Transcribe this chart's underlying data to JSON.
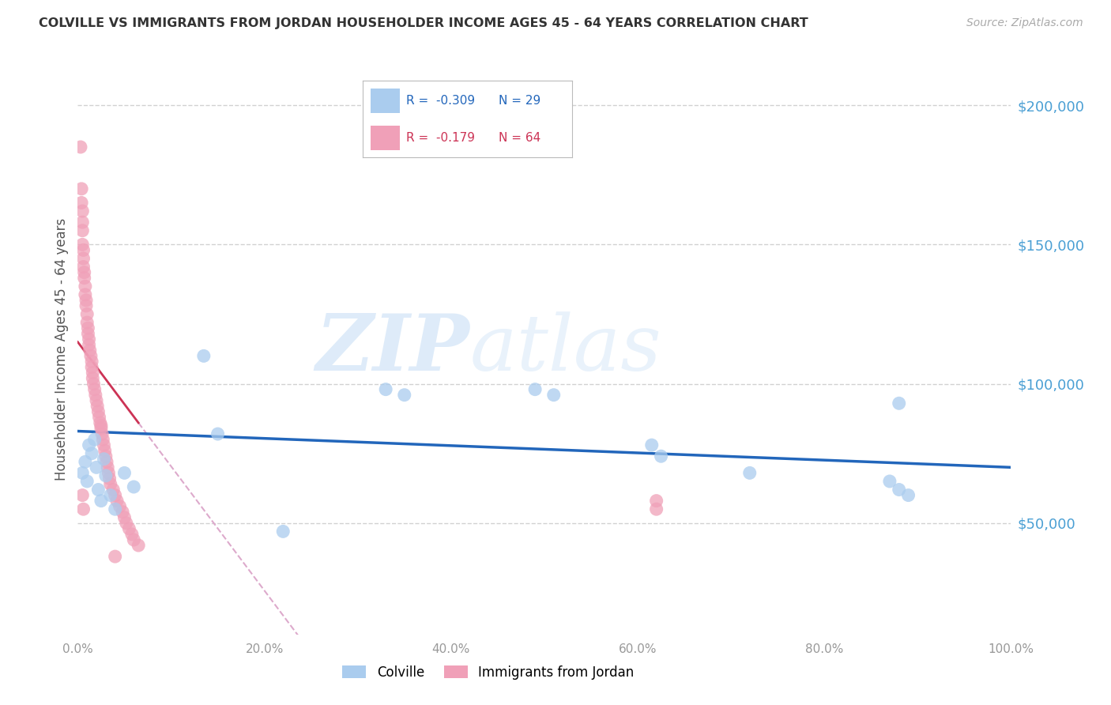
{
  "title": "COLVILLE VS IMMIGRANTS FROM JORDAN HOUSEHOLDER INCOME AGES 45 - 64 YEARS CORRELATION CHART",
  "source": "Source: ZipAtlas.com",
  "ylabel": "Householder Income Ages 45 - 64 years",
  "ytick_labels": [
    "$50,000",
    "$100,000",
    "$150,000",
    "$200,000"
  ],
  "ytick_values": [
    50000,
    100000,
    150000,
    200000
  ],
  "ymin": 10000,
  "ymax": 215000,
  "xmin": 0.0,
  "xmax": 1.0,
  "legend_blue_r": "-0.309",
  "legend_blue_n": "29",
  "legend_pink_r": "-0.179",
  "legend_pink_n": "64",
  "colville_color": "#aaccee",
  "jordan_color": "#f0a0b8",
  "trendline_blue_color": "#2266bb",
  "trendline_pink_solid_color": "#cc3355",
  "trendline_pink_dashed_color": "#ddaacc",
  "watermark": "ZIPatlas",
  "colville_x": [
    0.005,
    0.008,
    0.01,
    0.012,
    0.015,
    0.018,
    0.02,
    0.022,
    0.025,
    0.028,
    0.03,
    0.035,
    0.04,
    0.05,
    0.06,
    0.135,
    0.15,
    0.33,
    0.35,
    0.49,
    0.51,
    0.615,
    0.625,
    0.72,
    0.87,
    0.88,
    0.89,
    0.88,
    0.22
  ],
  "colville_y": [
    68000,
    72000,
    65000,
    78000,
    75000,
    80000,
    70000,
    62000,
    58000,
    73000,
    67000,
    60000,
    55000,
    68000,
    63000,
    110000,
    82000,
    98000,
    96000,
    98000,
    96000,
    78000,
    74000,
    68000,
    65000,
    62000,
    60000,
    93000,
    47000
  ],
  "jordan_x": [
    0.003,
    0.004,
    0.004,
    0.005,
    0.005,
    0.005,
    0.005,
    0.006,
    0.006,
    0.006,
    0.007,
    0.007,
    0.008,
    0.008,
    0.009,
    0.009,
    0.01,
    0.01,
    0.011,
    0.011,
    0.012,
    0.012,
    0.013,
    0.014,
    0.015,
    0.015,
    0.016,
    0.016,
    0.017,
    0.018,
    0.019,
    0.02,
    0.021,
    0.022,
    0.023,
    0.024,
    0.025,
    0.026,
    0.027,
    0.028,
    0.029,
    0.03,
    0.031,
    0.032,
    0.033,
    0.034,
    0.035,
    0.038,
    0.04,
    0.042,
    0.045,
    0.048,
    0.05,
    0.052,
    0.055,
    0.058,
    0.06,
    0.065,
    0.005,
    0.006,
    0.025,
    0.04,
    0.62,
    0.62
  ],
  "jordan_y": [
    185000,
    170000,
    165000,
    162000,
    158000,
    155000,
    150000,
    148000,
    145000,
    142000,
    140000,
    138000,
    135000,
    132000,
    130000,
    128000,
    125000,
    122000,
    120000,
    118000,
    116000,
    114000,
    112000,
    110000,
    108000,
    106000,
    104000,
    102000,
    100000,
    98000,
    96000,
    94000,
    92000,
    90000,
    88000,
    86000,
    84000,
    82000,
    80000,
    78000,
    76000,
    74000,
    72000,
    70000,
    68000,
    66000,
    64000,
    62000,
    60000,
    58000,
    56000,
    54000,
    52000,
    50000,
    48000,
    46000,
    44000,
    42000,
    60000,
    55000,
    85000,
    38000,
    58000,
    55000
  ],
  "xtick_positions": [
    0.0,
    0.2,
    0.4,
    0.6,
    0.8,
    1.0
  ],
  "xtick_labels": [
    "0.0%",
    "20.0%",
    "40.0%",
    "60.0%",
    "80.0%",
    "100.0%"
  ]
}
